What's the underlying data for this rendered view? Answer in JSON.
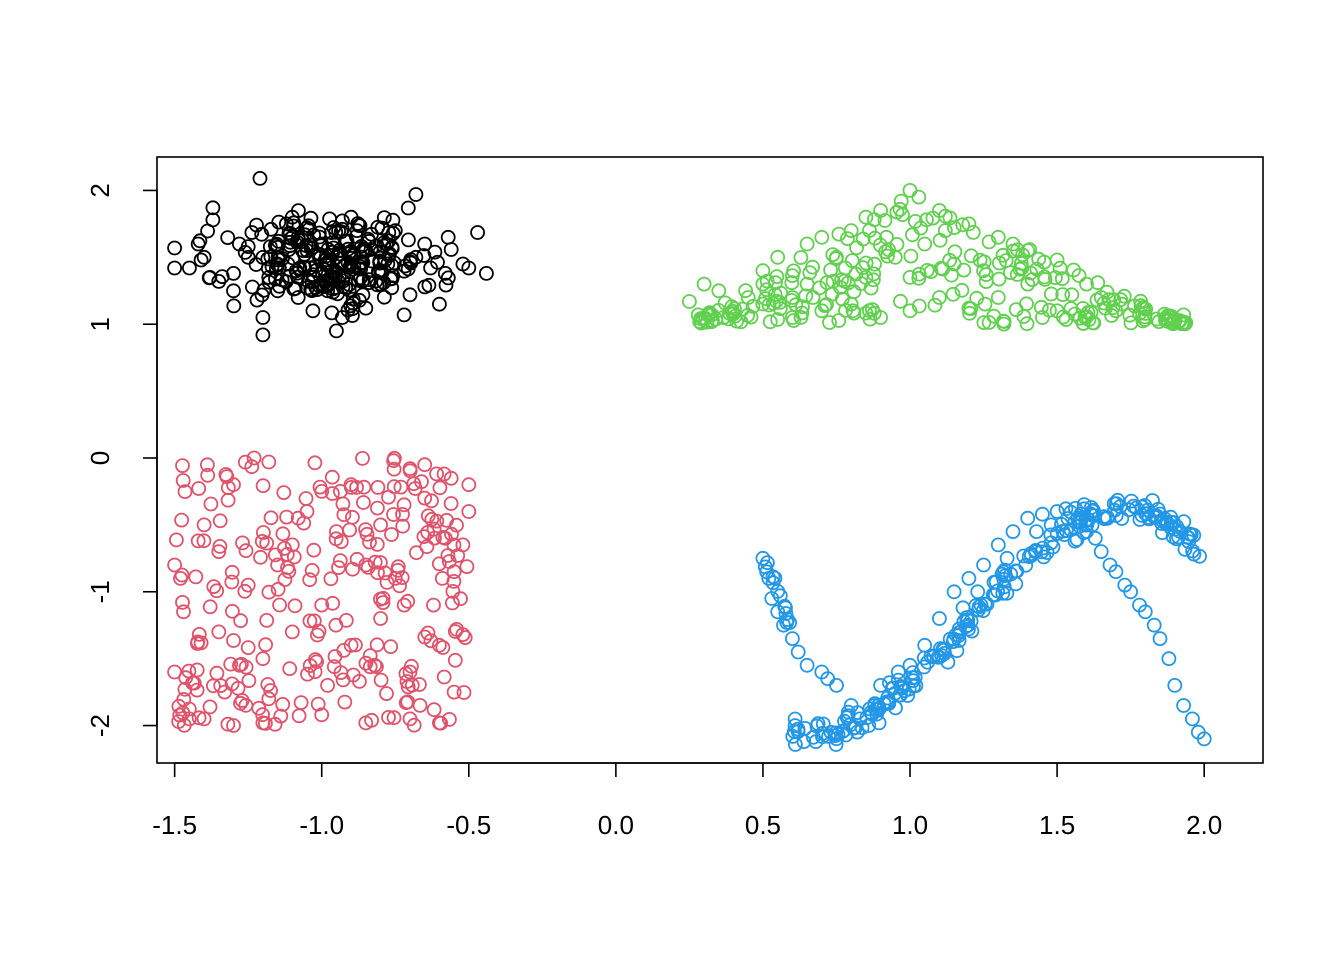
{
  "chart_data": {
    "type": "scatter",
    "title": "",
    "xlabel": "",
    "ylabel": "",
    "xlim": [
      -1.56,
      2.2
    ],
    "ylim": [
      -2.28,
      2.25
    ],
    "x_ticks": [
      -1.5,
      -1.0,
      -0.5,
      0.0,
      0.5,
      1.0,
      1.5,
      2.0
    ],
    "x_tick_labels": [
      "-1.5",
      "-1.0",
      "-0.5",
      "0.0",
      "0.5",
      "1.0",
      "1.5",
      "2.0"
    ],
    "y_ticks": [
      -2,
      -1,
      0,
      1,
      2
    ],
    "y_tick_labels": [
      "-2",
      "-1",
      "0",
      "1",
      "2"
    ],
    "grid": false,
    "legend": "none",
    "marker": "open-circle",
    "series": [
      {
        "color": "#000000",
        "shape": "gaussian-blob",
        "center": [
          -0.97,
          1.48
        ],
        "spread": [
          0.17,
          0.16
        ],
        "count": 300,
        "points": [
          [
            -1.21,
            2.09
          ],
          [
            -0.68,
            1.97
          ],
          [
            -1.37,
            1.87
          ],
          [
            -1.37,
            1.78
          ],
          [
            -1.5,
            1.57
          ],
          [
            -1.5,
            1.42
          ],
          [
            -1.45,
            1.42
          ],
          [
            -1.42,
            1.6
          ],
          [
            -1.4,
            1.5
          ],
          [
            -1.38,
            1.35
          ],
          [
            -1.35,
            1.32
          ],
          [
            -1.3,
            1.38
          ],
          [
            -1.25,
            1.58
          ],
          [
            -1.22,
            1.18
          ],
          [
            -1.2,
            1.05
          ],
          [
            -1.2,
            0.92
          ],
          [
            -1.15,
            1.25
          ],
          [
            -1.08,
            1.2
          ],
          [
            -1.03,
            1.1
          ],
          [
            -1.0,
            1.3
          ],
          [
            -0.95,
            0.95
          ],
          [
            -0.93,
            1.05
          ],
          [
            -0.85,
            1.12
          ],
          [
            -0.8,
            1.3
          ],
          [
            -0.72,
            1.07
          ],
          [
            -0.7,
            1.22
          ],
          [
            -0.6,
            1.15
          ],
          [
            -0.58,
            1.38
          ],
          [
            -0.57,
            1.65
          ],
          [
            -0.52,
            1.45
          ],
          [
            -0.5,
            1.42
          ],
          [
            -0.44,
            1.38
          ],
          [
            -0.65,
            1.6
          ],
          [
            -0.75,
            1.7
          ],
          [
            -1.1,
            1.8
          ],
          [
            -1.12,
            1.75
          ],
          [
            -0.9,
            1.8
          ],
          [
            -1.25,
            1.5
          ],
          [
            -1.15,
            1.45
          ],
          [
            -1.05,
            1.55
          ],
          [
            -1.0,
            1.6
          ],
          [
            -0.95,
            1.5
          ],
          [
            -0.9,
            1.45
          ],
          [
            -0.85,
            1.55
          ],
          [
            -0.8,
            1.4
          ],
          [
            -0.97,
            1.35
          ],
          [
            -1.02,
            1.4
          ],
          [
            -0.92,
            1.62
          ],
          [
            -1.08,
            1.65
          ],
          [
            -0.78,
            1.6
          ],
          [
            -0.86,
            1.22
          ],
          [
            -1.3,
            1.25
          ],
          [
            -1.18,
            1.35
          ],
          [
            -0.98,
            1.25
          ],
          [
            -0.68,
            1.5
          ],
          [
            -0.63,
            1.42
          ],
          [
            -1.41,
            1.48
          ],
          [
            -1.28,
            1.6
          ],
          [
            -0.88,
            1.7
          ],
          [
            -1.05,
            1.72
          ],
          [
            -0.96,
            1.57
          ]
        ]
      },
      {
        "color": "#DF536B",
        "shape": "uniform-square",
        "x_range": [
          -1.5,
          -0.5
        ],
        "y_range": [
          -2.0,
          0.0
        ],
        "count": 300,
        "points": [
          [
            -1.23,
            0.0
          ],
          [
            -1.18,
            -0.03
          ],
          [
            -0.65,
            -0.05
          ],
          [
            -0.7,
            -0.08
          ],
          [
            -0.5,
            -0.2
          ],
          [
            -1.5,
            -0.8
          ],
          [
            -1.48,
            -0.9
          ],
          [
            -1.47,
            -1.15
          ],
          [
            -1.5,
            -1.6
          ],
          [
            -1.45,
            -1.95
          ],
          [
            -1.4,
            -1.95
          ],
          [
            -1.3,
            -2.0
          ],
          [
            -1.2,
            -1.98
          ],
          [
            -1.0,
            -1.92
          ],
          [
            -0.85,
            -1.98
          ],
          [
            -0.7,
            -1.95
          ],
          [
            -0.6,
            -1.98
          ],
          [
            -0.55,
            -1.75
          ],
          [
            -0.52,
            -1.32
          ],
          [
            -0.5,
            -0.4
          ],
          [
            -0.52,
            -0.65
          ],
          [
            -0.55,
            -0.85
          ],
          [
            -0.8,
            -0.5
          ],
          [
            -0.95,
            -0.55
          ],
          [
            -1.05,
            -0.4
          ],
          [
            -1.15,
            -0.8
          ],
          [
            -1.25,
            -0.95
          ],
          [
            -1.35,
            -1.3
          ],
          [
            -1.2,
            -1.5
          ],
          [
            -1.1,
            -1.3
          ],
          [
            -1.0,
            -1.1
          ],
          [
            -0.9,
            -1.4
          ],
          [
            -0.8,
            -1.2
          ],
          [
            -0.7,
            -1.6
          ],
          [
            -0.6,
            -1.4
          ],
          [
            -0.65,
            -0.3
          ],
          [
            -0.9,
            -0.2
          ],
          [
            -1.0,
            -0.25
          ],
          [
            -1.3,
            -0.2
          ],
          [
            -1.4,
            -0.5
          ],
          [
            -1.35,
            -0.7
          ],
          [
            -1.1,
            -0.65
          ],
          [
            -0.75,
            -0.9
          ],
          [
            -0.62,
            -1.1
          ],
          [
            -0.98,
            -1.7
          ],
          [
            -1.18,
            -1.8
          ],
          [
            -1.33,
            -1.75
          ],
          [
            -0.82,
            -1.55
          ],
          [
            -0.58,
            -0.6
          ],
          [
            -1.08,
            -0.45
          ],
          [
            -1.42,
            -0.62
          ],
          [
            -0.72,
            -0.35
          ],
          [
            -0.85,
            -0.8
          ],
          [
            -1.28,
            -1.55
          ]
        ]
      },
      {
        "color": "#61D04F",
        "shape": "triangle",
        "x_range": [
          0.25,
          1.95
        ],
        "y_range": [
          1.0,
          2.0
        ],
        "count": 300,
        "points": [
          [
            1.0,
            2.0
          ],
          [
            1.03,
            1.95
          ],
          [
            0.97,
            1.92
          ],
          [
            0.25,
            1.17
          ],
          [
            0.28,
            1.07
          ],
          [
            0.3,
            1.3
          ],
          [
            0.35,
            1.25
          ],
          [
            0.4,
            1.08
          ],
          [
            0.5,
            1.4
          ],
          [
            0.55,
            1.5
          ],
          [
            0.6,
            1.05
          ],
          [
            0.65,
            1.6
          ],
          [
            0.7,
            1.65
          ],
          [
            0.8,
            1.7
          ],
          [
            0.85,
            1.8
          ],
          [
            0.9,
            1.85
          ],
          [
            1.1,
            1.85
          ],
          [
            1.2,
            1.75
          ],
          [
            1.3,
            1.65
          ],
          [
            1.35,
            1.6
          ],
          [
            1.4,
            1.55
          ],
          [
            1.5,
            1.48
          ],
          [
            1.6,
            1.3
          ],
          [
            1.65,
            1.2
          ],
          [
            1.7,
            1.1
          ],
          [
            1.8,
            1.08
          ],
          [
            1.93,
            1.07
          ],
          [
            1.5,
            1.1
          ],
          [
            1.45,
            1.05
          ],
          [
            1.32,
            1.02
          ],
          [
            1.2,
            1.12
          ],
          [
            1.1,
            1.2
          ],
          [
            1.0,
            1.1
          ],
          [
            0.9,
            1.05
          ],
          [
            0.8,
            1.15
          ],
          [
            0.7,
            1.1
          ],
          [
            0.6,
            1.2
          ],
          [
            0.5,
            1.3
          ],
          [
            0.45,
            1.2
          ],
          [
            0.75,
            1.5
          ],
          [
            0.95,
            1.5
          ],
          [
            1.05,
            1.6
          ],
          [
            1.15,
            1.45
          ],
          [
            1.25,
            1.4
          ],
          [
            1.4,
            1.3
          ],
          [
            0.85,
            1.35
          ],
          [
            1.0,
            1.35
          ],
          [
            1.3,
            1.2
          ],
          [
            0.65,
            1.3
          ],
          [
            1.55,
            1.22
          ],
          [
            1.72,
            1.15
          ],
          [
            1.12,
            1.7
          ],
          [
            0.92,
            1.65
          ],
          [
            0.78,
            1.42
          ],
          [
            1.38,
            1.42
          ]
        ]
      },
      {
        "color": "#2297E6",
        "shape": "sine-curve",
        "x_range": [
          0.5,
          2.0
        ],
        "count": 300,
        "points": [
          [
            0.5,
            -0.75
          ],
          [
            0.52,
            -0.9
          ],
          [
            0.53,
            -1.05
          ],
          [
            0.55,
            -1.15
          ],
          [
            0.57,
            -1.25
          ],
          [
            0.6,
            -1.35
          ],
          [
            0.62,
            -1.45
          ],
          [
            0.65,
            -1.55
          ],
          [
            0.7,
            -1.6
          ],
          [
            0.75,
            -1.7
          ],
          [
            0.8,
            -1.85
          ],
          [
            0.83,
            -1.95
          ],
          [
            0.86,
            -2.0
          ],
          [
            0.88,
            -1.85
          ],
          [
            0.9,
            -1.7
          ],
          [
            0.93,
            -1.68
          ],
          [
            0.96,
            -1.6
          ],
          [
            1.0,
            -1.55
          ],
          [
            1.05,
            -1.4
          ],
          [
            1.1,
            -1.2
          ],
          [
            1.15,
            -1.0
          ],
          [
            1.2,
            -0.9
          ],
          [
            1.25,
            -0.8
          ],
          [
            1.3,
            -0.65
          ],
          [
            1.35,
            -0.55
          ],
          [
            1.4,
            -0.45
          ],
          [
            1.45,
            -0.42
          ],
          [
            1.5,
            -0.4
          ],
          [
            1.53,
            -0.38
          ],
          [
            1.57,
            -0.45
          ],
          [
            1.6,
            -0.55
          ],
          [
            1.65,
            -0.7
          ],
          [
            1.7,
            -0.85
          ],
          [
            1.75,
            -1.0
          ],
          [
            1.8,
            -1.15
          ],
          [
            1.85,
            -1.35
          ],
          [
            1.88,
            -1.5
          ],
          [
            1.9,
            -1.7
          ],
          [
            1.93,
            -1.85
          ],
          [
            1.96,
            -1.95
          ],
          [
            1.98,
            -2.05
          ],
          [
            2.0,
            -2.1
          ],
          [
            1.23,
            -1.0
          ],
          [
            1.33,
            -0.75
          ],
          [
            1.43,
            -0.55
          ],
          [
            1.63,
            -0.6
          ],
          [
            1.73,
            -0.95
          ],
          [
            1.83,
            -1.25
          ],
          [
            0.72,
            -1.65
          ],
          [
            0.79,
            -1.9
          ],
          [
            0.94,
            -1.72
          ],
          [
            1.08,
            -1.48
          ],
          [
            1.18,
            -1.12
          ],
          [
            1.48,
            -0.5
          ],
          [
            1.58,
            -0.48
          ],
          [
            1.68,
            -0.8
          ],
          [
            1.78,
            -1.1
          ]
        ]
      }
    ]
  }
}
